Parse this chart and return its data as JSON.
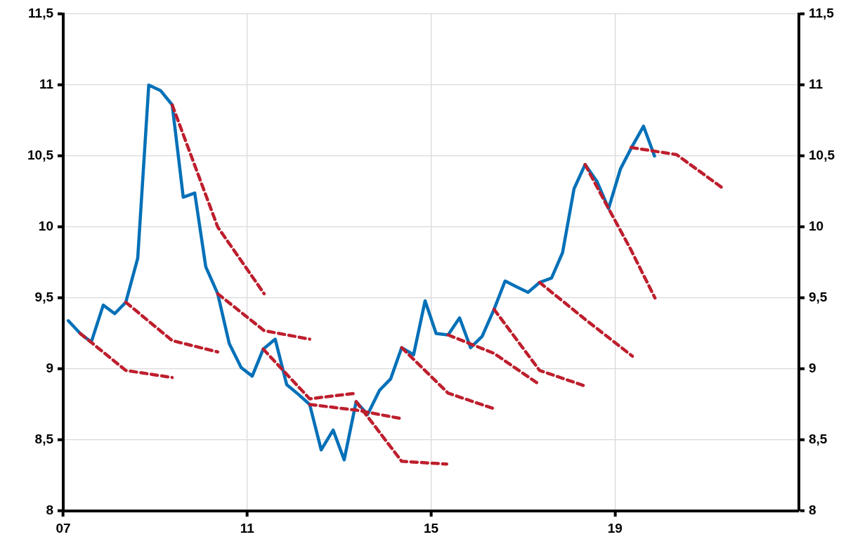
{
  "chart_data": {
    "type": "line",
    "xlim": [
      2007,
      2023
    ],
    "xticks": [
      {
        "value": 2007,
        "label": "07"
      },
      {
        "value": 2011,
        "label": "11"
      },
      {
        "value": 2015,
        "label": "15"
      },
      {
        "value": 2019,
        "label": "19"
      }
    ],
    "ylim": [
      8,
      11.5
    ],
    "yticks": [
      {
        "value": 8,
        "label": "8"
      },
      {
        "value": 8.5,
        "label": "8,5"
      },
      {
        "value": 9,
        "label": "9"
      },
      {
        "value": 9.5,
        "label": "9,5"
      },
      {
        "value": 10,
        "label": "10"
      },
      {
        "value": 10.5,
        "label": "10,5"
      },
      {
        "value": 11,
        "label": "11"
      },
      {
        "value": 11.5,
        "label": "11,5"
      }
    ],
    "y2lim": [
      8,
      11.5
    ],
    "y2ticks": [
      {
        "value": 8,
        "label": "8"
      },
      {
        "value": 8.5,
        "label": "8,5"
      },
      {
        "value": 9,
        "label": "9"
      },
      {
        "value": 9.5,
        "label": "9,5"
      },
      {
        "value": 10,
        "label": "10"
      },
      {
        "value": 10.5,
        "label": "10,5"
      },
      {
        "value": 11,
        "label": "11"
      },
      {
        "value": 11.5,
        "label": "11,5"
      }
    ],
    "grid": true,
    "legend": false,
    "series": [
      {
        "color": "#0070b8",
        "line_style": "solid",
        "x": [
          2007.11,
          2007.37,
          2007.61,
          2007.87,
          2008.12,
          2008.36,
          2008.62,
          2008.86,
          2009.12,
          2009.37,
          2009.61,
          2009.86,
          2010.1,
          2010.36,
          2010.61,
          2010.87,
          2011.11,
          2011.35,
          2011.61,
          2011.86,
          2012.12,
          2012.36,
          2012.61,
          2012.87,
          2013.11,
          2013.37,
          2013.62,
          2013.88,
          2014.12,
          2014.36,
          2014.62,
          2014.87,
          2015.11,
          2015.37,
          2015.62,
          2015.86,
          2016.11,
          2016.37,
          2016.61,
          2016.85,
          2017.11,
          2017.36,
          2017.62,
          2017.86,
          2018.11,
          2018.35,
          2018.61,
          2018.86,
          2019.12,
          2019.36,
          2019.62,
          2019.86
        ],
        "values": [
          9.34,
          9.25,
          9.19,
          9.45,
          9.39,
          9.47,
          9.78,
          11.0,
          10.96,
          10.86,
          10.21,
          10.24,
          9.72,
          9.53,
          9.18,
          9.01,
          8.95,
          9.14,
          9.21,
          8.89,
          8.82,
          8.75,
          8.43,
          8.57,
          8.36,
          8.77,
          8.68,
          8.85,
          8.93,
          9.15,
          9.1,
          9.48,
          9.25,
          9.24,
          9.36,
          9.15,
          9.23,
          9.42,
          9.62,
          9.58,
          9.54,
          9.61,
          9.64,
          9.82,
          10.27,
          10.44,
          10.32,
          10.13,
          10.41,
          10.56,
          10.71,
          10.5
        ]
      },
      {
        "color": "#be1e2d",
        "line_style": "dashed",
        "x": [
          2007.37,
          2008.36,
          2009.37
        ],
        "values": [
          9.25,
          8.99,
          8.94
        ]
      },
      {
        "color": "#be1e2d",
        "line_style": "dashed",
        "x": [
          2008.36,
          2009.37,
          2010.36
        ],
        "values": [
          9.47,
          9.2,
          9.12
        ]
      },
      {
        "color": "#be1e2d",
        "line_style": "dashed",
        "x": [
          2009.37,
          2010.36,
          2011.37
        ],
        "values": [
          10.86,
          10.0,
          9.53
        ]
      },
      {
        "color": "#be1e2d",
        "line_style": "dashed",
        "x": [
          2010.36,
          2011.37,
          2012.36
        ],
        "values": [
          9.53,
          9.27,
          9.21
        ]
      },
      {
        "color": "#be1e2d",
        "line_style": "dashed",
        "x": [
          2011.35,
          2012.36,
          2013.38
        ],
        "values": [
          9.14,
          8.79,
          8.83
        ]
      },
      {
        "color": "#be1e2d",
        "line_style": "dashed",
        "x": [
          2012.36,
          2013.38,
          2014.36
        ],
        "values": [
          8.75,
          8.71,
          8.65
        ]
      },
      {
        "color": "#be1e2d",
        "line_style": "dashed",
        "x": [
          2013.37,
          2014.36,
          2015.34
        ],
        "values": [
          8.77,
          8.35,
          8.33
        ]
      },
      {
        "color": "#be1e2d",
        "line_style": "dashed",
        "x": [
          2014.36,
          2015.37,
          2016.37
        ],
        "values": [
          9.15,
          8.83,
          8.72
        ]
      },
      {
        "color": "#be1e2d",
        "line_style": "dashed",
        "x": [
          2015.37,
          2016.37,
          2017.36
        ],
        "values": [
          9.24,
          9.11,
          8.89
        ]
      },
      {
        "color": "#be1e2d",
        "line_style": "dashed",
        "x": [
          2016.37,
          2017.36,
          2018.35
        ],
        "values": [
          9.42,
          8.99,
          8.88
        ]
      },
      {
        "color": "#be1e2d",
        "line_style": "dashed",
        "x": [
          2017.36,
          2018.35,
          2019.38
        ],
        "values": [
          9.61,
          9.35,
          9.09
        ]
      },
      {
        "color": "#be1e2d",
        "line_style": "dashed",
        "x": [
          2018.35,
          2018.86,
          2019.33,
          2019.87
        ],
        "values": [
          10.44,
          10.13,
          9.85,
          9.5
        ]
      },
      {
        "color": "#be1e2d",
        "line_style": "dashed",
        "x": [
          2019.35,
          2020.34,
          2021.36
        ],
        "values": [
          10.56,
          10.51,
          10.27
        ]
      }
    ]
  }
}
